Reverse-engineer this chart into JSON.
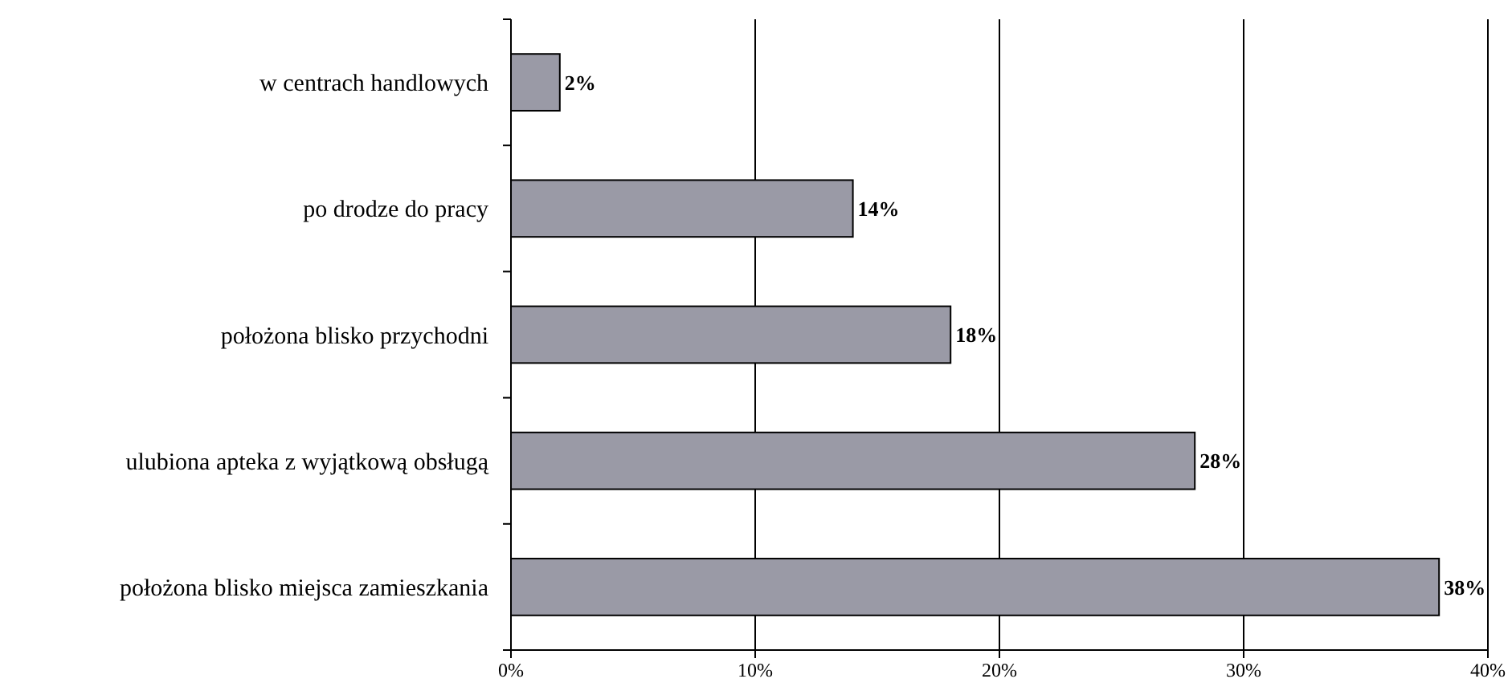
{
  "chart_data": {
    "type": "bar",
    "orientation": "horizontal",
    "categories": [
      "w centrach handlowych",
      "po drodze do pracy",
      "położona blisko przychodni",
      "ulubiona apteka z wyjątkową obsługą",
      "położona blisko miejsca zamieszkania"
    ],
    "values": [
      2,
      14,
      18,
      28,
      38
    ],
    "value_labels": [
      "2%",
      "14%",
      "18%",
      "28%",
      "38%"
    ],
    "color": "#9a9aa6",
    "xlim": [
      0,
      40
    ],
    "xticks": [
      {
        "value": 0,
        "label": "0%"
      },
      {
        "value": 10,
        "label": "10%"
      },
      {
        "value": 20,
        "label": "20%"
      },
      {
        "value": 30,
        "label": "30%"
      },
      {
        "value": 40,
        "label": "40%"
      }
    ],
    "grid": "x"
  }
}
